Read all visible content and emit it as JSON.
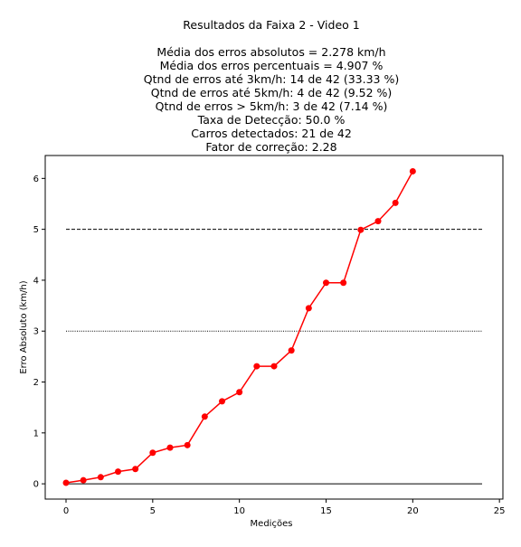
{
  "chart_data": {
    "type": "line",
    "title_lines": [
      "Resultados da Faixa 2 - Video 1",
      "",
      "Média dos erros absolutos =  2.278 km/h",
      "Média dos erros percentuais = 4.907 %",
      "Qtnd de erros até 3km/h: 14 de 42 (33.33 %)",
      "Qtnd de erros até 5km/h: 4 de 42 (9.52 %)",
      "Qtnd de erros > 5km/h: 3 de 42 (7.14 %)",
      "Taxa de Detecção: 50.0 %",
      "Carros detectados: 21 de 42",
      "Fator de correção: 2.28"
    ],
    "xlabel": "Medições",
    "ylabel": "Erro Absoluto (km/h)",
    "xlim": [
      -1.2,
      25.2
    ],
    "ylim": [
      -0.3,
      6.45
    ],
    "xticks": [
      0,
      5,
      10,
      15,
      20,
      25
    ],
    "yticks": [
      0,
      1,
      2,
      3,
      4,
      5,
      6
    ],
    "grid": false,
    "series": [
      {
        "color": "#ff0000",
        "marker": "circle",
        "x": [
          0,
          1,
          2,
          3,
          4,
          5,
          6,
          7,
          8,
          9,
          10,
          11,
          12,
          13,
          14,
          15,
          16,
          17,
          18,
          19,
          20
        ],
        "y": [
          0.02,
          0.07,
          0.13,
          0.24,
          0.29,
          0.61,
          0.71,
          0.76,
          1.32,
          1.62,
          1.8,
          2.31,
          2.31,
          2.62,
          3.45,
          3.95,
          3.95,
          4.99,
          5.16,
          5.52,
          6.14
        ]
      }
    ],
    "reference_lines": [
      {
        "y": 0,
        "x_range": [
          0,
          24
        ],
        "style": "solid",
        "color": "#000000"
      },
      {
        "y": 3,
        "x_range": [
          0,
          24
        ],
        "style": "dotted",
        "color": "#000000"
      },
      {
        "y": 5,
        "x_range": [
          0,
          24
        ],
        "style": "dashed",
        "color": "#000000"
      }
    ]
  }
}
